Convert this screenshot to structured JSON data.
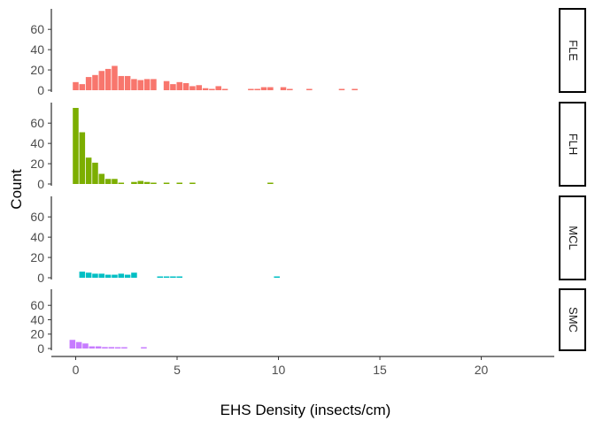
{
  "chart_data": {
    "type": "histogram-facets",
    "xlabel": "EHS Density (insects/cm)",
    "ylabel": "Count",
    "xlim": [
      -1.2,
      23.6
    ],
    "ylim": [
      0,
      75
    ],
    "x_ticks": [
      0,
      5,
      10,
      15,
      20
    ],
    "x_tick_labels": [
      "0",
      "5",
      "10",
      "15",
      "20"
    ],
    "y_ticks": [
      0,
      20,
      40,
      60
    ],
    "y_tick_labels": [
      "0",
      "20",
      "40",
      "60"
    ],
    "bin_width": 0.32,
    "facets": [
      {
        "name": "FLE",
        "color": "#F8766D",
        "bars": [
          {
            "x": 0.0,
            "count": 8
          },
          {
            "x": 0.32,
            "count": 6
          },
          {
            "x": 0.64,
            "count": 13
          },
          {
            "x": 0.96,
            "count": 15
          },
          {
            "x": 1.28,
            "count": 19
          },
          {
            "x": 1.6,
            "count": 21
          },
          {
            "x": 1.92,
            "count": 24
          },
          {
            "x": 2.24,
            "count": 14
          },
          {
            "x": 2.56,
            "count": 14
          },
          {
            "x": 2.88,
            "count": 11
          },
          {
            "x": 3.2,
            "count": 10
          },
          {
            "x": 3.52,
            "count": 11
          },
          {
            "x": 3.84,
            "count": 11
          },
          {
            "x": 4.48,
            "count": 9
          },
          {
            "x": 4.8,
            "count": 6
          },
          {
            "x": 5.12,
            "count": 8
          },
          {
            "x": 5.44,
            "count": 7
          },
          {
            "x": 5.76,
            "count": 4
          },
          {
            "x": 6.08,
            "count": 5
          },
          {
            "x": 6.4,
            "count": 2
          },
          {
            "x": 6.72,
            "count": 1
          },
          {
            "x": 7.04,
            "count": 4
          },
          {
            "x": 7.36,
            "count": 1
          },
          {
            "x": 8.64,
            "count": 1
          },
          {
            "x": 8.96,
            "count": 1
          },
          {
            "x": 9.28,
            "count": 3
          },
          {
            "x": 9.6,
            "count": 3
          },
          {
            "x": 10.24,
            "count": 3
          },
          {
            "x": 10.56,
            "count": 1
          },
          {
            "x": 11.52,
            "count": 1
          },
          {
            "x": 13.12,
            "count": 1
          },
          {
            "x": 13.76,
            "count": 1
          }
        ]
      },
      {
        "name": "FLH",
        "color": "#7CAE00",
        "bars": [
          {
            "x": 0.0,
            "count": 75
          },
          {
            "x": 0.32,
            "count": 51
          },
          {
            "x": 0.64,
            "count": 26
          },
          {
            "x": 0.96,
            "count": 21
          },
          {
            "x": 1.28,
            "count": 10
          },
          {
            "x": 1.6,
            "count": 5
          },
          {
            "x": 1.92,
            "count": 5
          },
          {
            "x": 2.24,
            "count": 1
          },
          {
            "x": 2.88,
            "count": 2
          },
          {
            "x": 3.2,
            "count": 3
          },
          {
            "x": 3.52,
            "count": 2
          },
          {
            "x": 3.84,
            "count": 1
          },
          {
            "x": 4.48,
            "count": 1
          },
          {
            "x": 5.12,
            "count": 1
          },
          {
            "x": 5.76,
            "count": 1
          },
          {
            "x": 9.6,
            "count": 1
          }
        ]
      },
      {
        "name": "MCL",
        "color": "#00BFC4",
        "bars": [
          {
            "x": 0.32,
            "count": 6
          },
          {
            "x": 0.64,
            "count": 5
          },
          {
            "x": 0.96,
            "count": 4
          },
          {
            "x": 1.28,
            "count": 4
          },
          {
            "x": 1.6,
            "count": 3
          },
          {
            "x": 1.92,
            "count": 3
          },
          {
            "x": 2.24,
            "count": 4
          },
          {
            "x": 2.56,
            "count": 3
          },
          {
            "x": 2.88,
            "count": 5
          },
          {
            "x": 4.16,
            "count": 1
          },
          {
            "x": 4.48,
            "count": 1
          },
          {
            "x": 4.8,
            "count": 1
          },
          {
            "x": 5.12,
            "count": 1
          },
          {
            "x": 9.92,
            "count": 1
          }
        ]
      },
      {
        "name": "SMC",
        "color": "#C77CFF",
        "bars": [
          {
            "x": -0.16,
            "count": 12
          },
          {
            "x": 0.16,
            "count": 9
          },
          {
            "x": 0.48,
            "count": 7
          },
          {
            "x": 0.8,
            "count": 3
          },
          {
            "x": 1.12,
            "count": 3
          },
          {
            "x": 1.44,
            "count": 2
          },
          {
            "x": 1.76,
            "count": 2
          },
          {
            "x": 2.08,
            "count": 1
          },
          {
            "x": 2.4,
            "count": 1
          },
          {
            "x": 3.36,
            "count": 1
          }
        ]
      }
    ],
    "grid": false,
    "legend": "none"
  }
}
